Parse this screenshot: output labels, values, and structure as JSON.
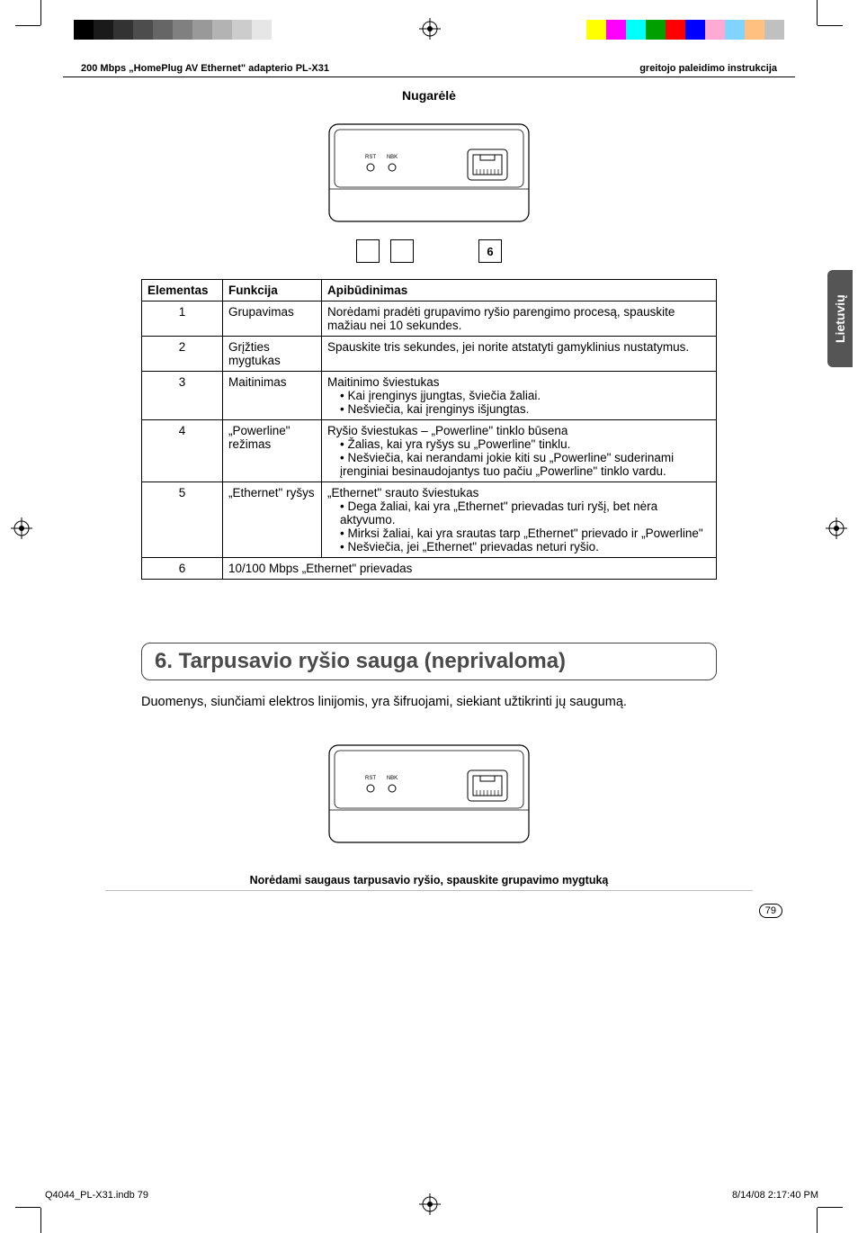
{
  "header": {
    "left": "200 Mbps „HomePlug AV Ethernet\" adapterio PL-X31",
    "right": "greitojo paleidimo instrukcija"
  },
  "sideTab": "Lietuvių",
  "rearTitle": "Nugarėlė",
  "calloutNumbers": [
    "",
    "",
    "6"
  ],
  "table": {
    "headers": {
      "c1": "Elementas",
      "c2": "Funkcija",
      "c3": "Apibūdinimas"
    },
    "rows": [
      {
        "num": "1",
        "func": "Grupavimas",
        "desc": "Norėdami pradėti grupavimo ryšio parengimo procesą, spauskite mažiau nei 10 sekundes."
      },
      {
        "num": "2",
        "func": "Grįžties mygtukas",
        "desc": "Spauskite tris sekundes, jei norite atstatyti gamyklinius nustatymus."
      },
      {
        "num": "3",
        "func": "Maitinimas",
        "descTitle": "Maitinimo šviestukas",
        "bullets": [
          "Kai įrenginys įjungtas, šviečia žaliai.",
          "Nešviečia, kai įrenginys išjungtas."
        ]
      },
      {
        "num": "4",
        "func": "„Powerline\" režimas",
        "descTitle": "Ryšio šviestukas – „Powerline\" tinklo būsena",
        "bullets": [
          "Žalias, kai yra ryšys su „Powerline\" tinklu.",
          "Nešviečia, kai nerandami jokie kiti su „Powerline\" suderinami įrenginiai besinaudojantys tuo pačiu „Powerline\" tinklo vardu."
        ]
      },
      {
        "num": "5",
        "func": "„Ethernet\" ryšys",
        "descTitle": "„Ethernet\" srauto šviestukas",
        "bullets": [
          "Dega žaliai, kai yra „Ethernet\" prievadas turi ryšį, bet nėra aktyvumo.",
          "Mirksi žaliai, kai yra srautas tarp „Ethernet\" prievado ir „Powerline\"",
          "Nešviečia, jei „Ethernet\" prievadas neturi ryšio."
        ]
      },
      {
        "num": "6",
        "funcSpan": "10/100 Mbps „Ethernet\" prievadas"
      }
    ]
  },
  "section6": {
    "heading": "6. Tarpusavio ryšio sauga (neprivaloma)",
    "body": "Duomenys, siunčiami elektros linijomis, yra šifruojami, siekiant užtikrinti jų saugumą.",
    "caption": "Norėdami saugaus tarpusavio ryšio, spauskite grupavimo mygtuką"
  },
  "pageNumber": "79",
  "footer": {
    "left": "Q4044_PL-X31.indb   79",
    "right": "8/14/08   2:17:40 PM"
  },
  "colorBars": {
    "left": [
      "#000000",
      "#1a1a1a",
      "#333333",
      "#4d4d4d",
      "#666666",
      "#808080",
      "#999999",
      "#b3b3b3",
      "#cccccc",
      "#e6e6e6"
    ],
    "right": [
      "#ffff00",
      "#ff00ff",
      "#00ffff",
      "#00a000",
      "#ff0000",
      "#0000ff",
      "#ffaad4",
      "#80d4ff",
      "#ffc080",
      "#c0c0c0"
    ]
  },
  "deviceLabels": {
    "rst": "RST",
    "nbk": "NBK"
  }
}
